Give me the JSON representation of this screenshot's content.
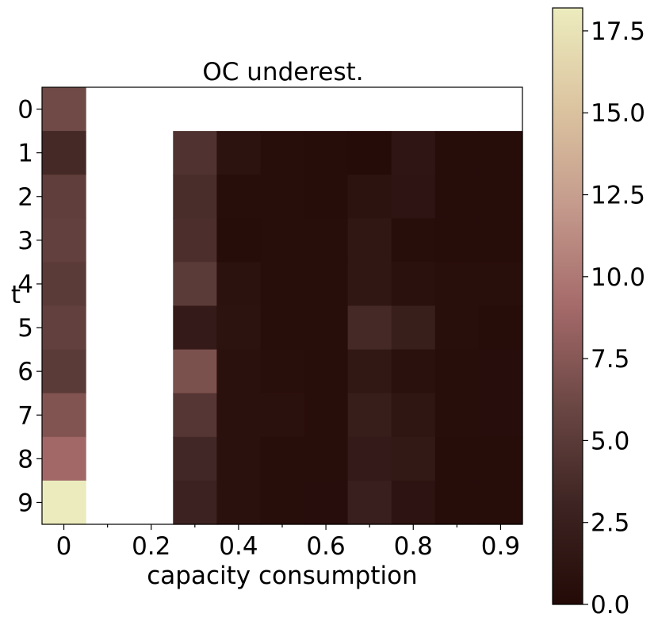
{
  "chart_data": {
    "type": "heatmap",
    "title": "OC underest.",
    "xlabel": "capacity consumption",
    "ylabel": "t",
    "x_tick_labels": [
      "0",
      "0.2",
      "0.4",
      "0.6",
      "0.8",
      "0.9"
    ],
    "y_tick_labels": [
      "0",
      "1",
      "2",
      "3",
      "4",
      "5",
      "6",
      "7",
      "8",
      "9"
    ],
    "n_cols": 11,
    "n_rows": 10,
    "values": [
      [
        6.3,
        null,
        null,
        null,
        null,
        null,
        null,
        null,
        null,
        null,
        null
      ],
      [
        3.5,
        null,
        null,
        4.3,
        1.0,
        0.5,
        0.3,
        0.2,
        1.3,
        0.3,
        0.3
      ],
      [
        5.3,
        null,
        null,
        3.8,
        0.5,
        0.5,
        0.3,
        1.0,
        1.2,
        0.3,
        0.3
      ],
      [
        5.5,
        null,
        null,
        4.0,
        0.3,
        0.5,
        0.5,
        1.5,
        0.5,
        0.3,
        0.3
      ],
      [
        5.0,
        null,
        null,
        5.0,
        0.9,
        0.5,
        0.5,
        1.5,
        0.8,
        0.6,
        0.6
      ],
      [
        5.5,
        null,
        null,
        1.9,
        1.0,
        0.5,
        0.5,
        3.5,
        2.4,
        0.6,
        0.3
      ],
      [
        5.0,
        null,
        null,
        6.9,
        0.8,
        0.6,
        0.5,
        1.6,
        0.8,
        0.5,
        0.4
      ],
      [
        7.2,
        null,
        null,
        4.6,
        0.8,
        0.8,
        0.5,
        2.3,
        1.4,
        0.5,
        0.4
      ],
      [
        8.9,
        null,
        null,
        3.3,
        0.8,
        0.5,
        0.5,
        1.9,
        1.7,
        0.3,
        0.3
      ],
      [
        18.1,
        null,
        null,
        2.9,
        0.8,
        0.5,
        0.4,
        2.6,
        1.1,
        0.3,
        0.3
      ]
    ],
    "colorbar": {
      "min": 0,
      "max": 18.2,
      "tick_labels": [
        "0.0",
        "2.5",
        "5.0",
        "7.5",
        "10.0",
        "12.5",
        "15.0",
        "17.5"
      ],
      "tick_values": [
        0,
        2.5,
        5.0,
        7.5,
        10.0,
        12.5,
        15.0,
        17.5
      ],
      "colormap": "pink",
      "colormap_stops": [
        "#240a07",
        "#3d2422",
        "#6b4744",
        "#a56a6a",
        "#c49a8c",
        "#dcc4a0",
        "#ececbe"
      ]
    },
    "grid": false,
    "legend": "none"
  }
}
